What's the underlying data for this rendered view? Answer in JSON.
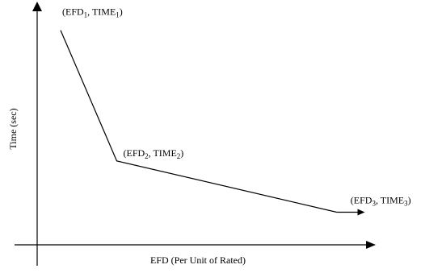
{
  "chart_data": {
    "type": "line",
    "title": "",
    "xlabel": "EFD (Per Unit of Rated)",
    "ylabel": "Time (sec)",
    "grid": false,
    "legend": "none",
    "series": [
      {
        "points": [
          {
            "x": 1.0,
            "y": 9.2,
            "label_base": "(EFD",
            "label_sub1": "1",
            "label_mid": ", TIME",
            "label_sub2": "1",
            "label_end": ")"
          },
          {
            "x": 3.4,
            "y": 3.6,
            "label_base": "(EFD",
            "label_sub1": "2",
            "label_mid": ", TIME",
            "label_sub2": "2",
            "label_end": ")"
          },
          {
            "x": 12.8,
            "y": 1.4,
            "label_base": "(EFD",
            "label_sub1": "3",
            "label_mid": ", TIME",
            "label_sub2": "3",
            "label_end": ")"
          }
        ],
        "tail_to_x": 14.0
      }
    ],
    "xlim": [
      0,
      14.5
    ],
    "ylim": [
      0,
      10.5
    ],
    "colors": {
      "line": "#000000",
      "axis": "#000000"
    }
  }
}
